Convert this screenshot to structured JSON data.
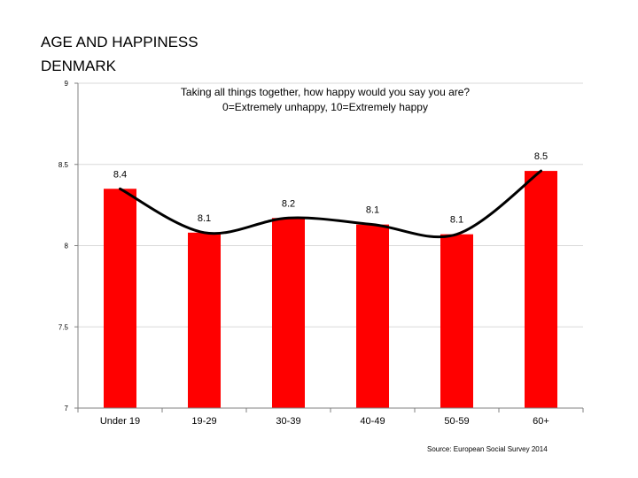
{
  "page": {
    "title_line1": "AGE AND HAPPINESS",
    "title_line2": "DENMARK",
    "source": "Source: European Social Survey 2014"
  },
  "chart_data": {
    "type": "bar",
    "title": "Taking all things together, how happy would you say you are?",
    "subtitle": "0=Extremely unhappy, 10=Extremely happy",
    "categories": [
      "Under 19",
      "19-29",
      "30-39",
      "40-49",
      "50-59",
      "60+"
    ],
    "series": [
      {
        "values": [
          8.35,
          8.08,
          8.17,
          8.13,
          8.07,
          8.46
        ],
        "data_labels": [
          "8.4",
          "8.1",
          "8.2",
          "8.1",
          "8.1",
          "8.5"
        ]
      }
    ],
    "trend_line": true,
    "ylim": [
      7,
      9
    ],
    "yticks": [
      "7",
      "7.5",
      "8",
      "8.5",
      "9"
    ],
    "ytick_values": [
      7,
      7.5,
      8,
      8.5,
      9
    ],
    "grid": true,
    "legend": "none",
    "colors": {
      "bar": "#ff0000",
      "line": "#000000",
      "grid": "#d9d9d9",
      "axis": "#808080"
    }
  }
}
